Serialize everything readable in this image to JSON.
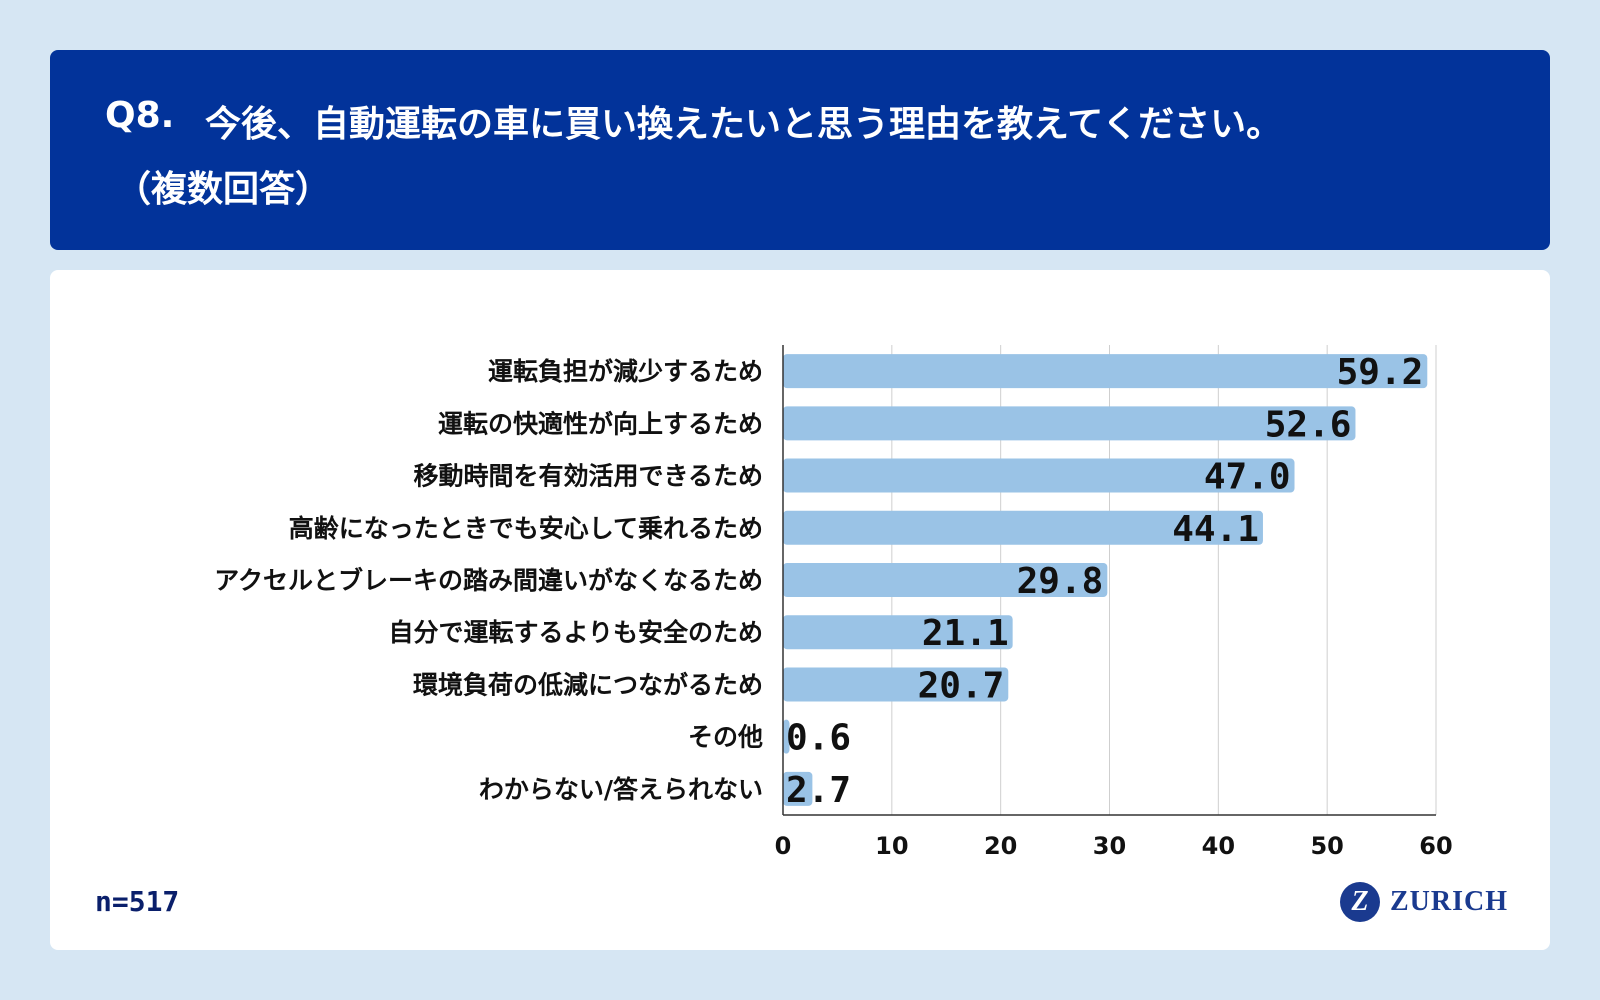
{
  "header": {
    "question_number": "Q8.",
    "question_text": "今後、自動運転の車に買い換えたいと思う理由を教えてください。",
    "question_sub": "（複数回答）"
  },
  "footer": {
    "sample_size": "n=517",
    "logo_mark": "Z",
    "logo_text": "ZURICH"
  },
  "colors": {
    "header_bg": "#02339a",
    "bar_fill": "#9ac3e6",
    "page_bg": "#d6e6f3"
  },
  "chart_data": {
    "type": "bar",
    "orientation": "horizontal",
    "categories": [
      "運転負担が減少するため",
      "運転の快適性が向上するため",
      "移動時間を有効活用できるため",
      "高齢になったときでも安心して乗れるため",
      "アクセルとブレーキの踏み間違いがなくなるため",
      "自分で運転するよりも安全のため",
      "環境負荷の低減につながるため",
      "その他",
      "わからない/答えられない"
    ],
    "values": [
      59.2,
      52.6,
      47.0,
      44.1,
      29.8,
      21.1,
      20.7,
      0.6,
      2.7
    ],
    "value_labels": [
      "59.2",
      "52.6",
      "47.0",
      "44.1",
      "29.8",
      "21.1",
      "20.7",
      "0.6",
      "2.7"
    ],
    "xlim": [
      0,
      60
    ],
    "x_ticks": [
      "0",
      "10",
      "20",
      "30",
      "40",
      "50",
      "60"
    ],
    "grid": true
  }
}
